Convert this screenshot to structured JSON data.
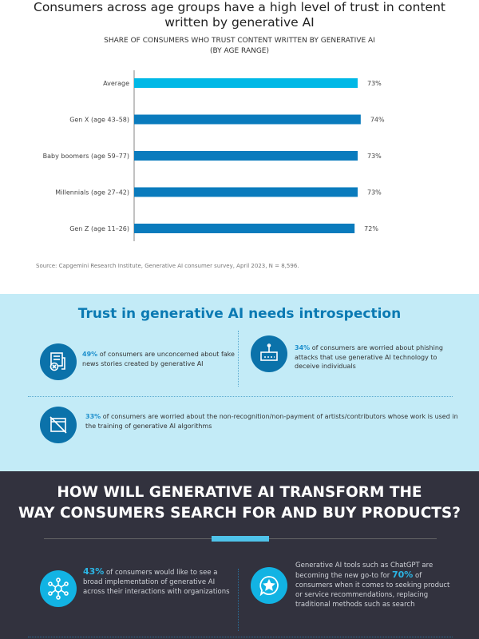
{
  "title_line1": "Consumers across age groups have a high level of trust in content",
  "title_line2": "written by generative AI",
  "chart_data": {
    "type": "bar",
    "orientation": "horizontal",
    "title": "SHARE OF CONSUMERS WHO TRUST CONTENT WRITTEN BY GENERATIVE AI",
    "subtitle": "(BY AGE RANGE)",
    "categories": [
      "Average",
      "Gen X (age 43–58)",
      "Baby boomers (age 59–77)",
      "Millennials (age 27–42)",
      "Gen Z (age 11–26)"
    ],
    "values": [
      73,
      74,
      73,
      73,
      72
    ],
    "labels": [
      "73%",
      "74%",
      "73%",
      "73%",
      "72%"
    ],
    "colors": [
      "#00b8e6",
      "#0a7bbd",
      "#0a7bbd",
      "#0a7bbd",
      "#0a7bbd"
    ],
    "unit": "%",
    "xlim": [
      0,
      100
    ],
    "grid": false
  },
  "source": "Source: Capgemini Research Institute, Generative AI consumer survey, April 2023, N = 8,596.",
  "trust": {
    "heading": "Trust in generative AI needs introspection",
    "items": [
      {
        "pct": "49%",
        "text": " of consumers are unconcerned about fake news stories created by generative AI"
      },
      {
        "pct": "34%",
        "text": " of consumers are worried about phishing attacks that use generative AI technology to deceive individuals"
      },
      {
        "pct": "33%",
        "text": " of consumers are worried about the non-recognition/non-payment of artists/contributors whose work is used in the training of generative AI algorithms"
      }
    ]
  },
  "transform": {
    "heading_line1": "HOW WILL GENERATIVE AI TRANSFORM THE",
    "heading_line2": "WAY CONSUMERS SEARCH FOR AND BUY PRODUCTS?",
    "item1": {
      "pct": "43%",
      "text": " of consumers would like to see a broad implementation of generative AI across their interactions with organizations"
    },
    "item2": {
      "pre": "Generative AI tools such as ChatGPT are becoming the new go-to for ",
      "pct": "70%",
      "post": " of consumers when it comes to seeking product or service recommendations, replacing traditional methods such as search"
    }
  }
}
